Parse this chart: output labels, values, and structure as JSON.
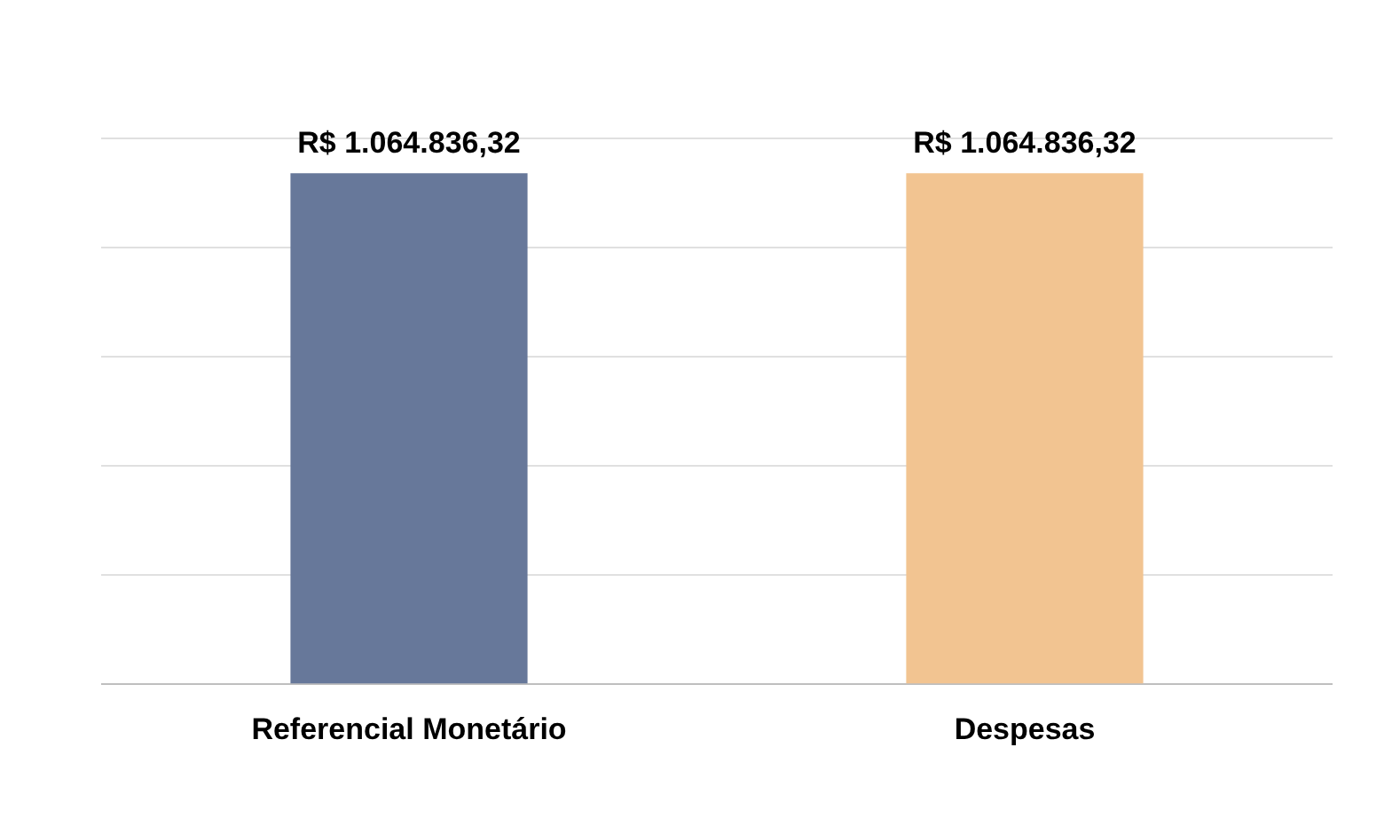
{
  "chart_data": {
    "type": "bar",
    "categories": [
      "Referencial Monetário",
      "Despesas"
    ],
    "values": [
      1064836.32,
      1064836.32
    ],
    "colors": [
      "#67789a",
      "#f2c491"
    ],
    "value_labels": [
      "R$ 1.064.836,32",
      "R$ 1.064.836,32"
    ],
    "ylim": [
      0,
      1137500
    ],
    "yticks": [
      {
        "value": 0,
        "label": null
      },
      {
        "value": 227500,
        "label": null
      },
      {
        "value": 455000,
        "label": null
      },
      {
        "value": 682500,
        "label": null
      },
      {
        "value": 910000,
        "label": null
      },
      {
        "value": 1137500,
        "label": null
      }
    ],
    "grid": "y",
    "tick_labels": "x",
    "legend": false
  }
}
